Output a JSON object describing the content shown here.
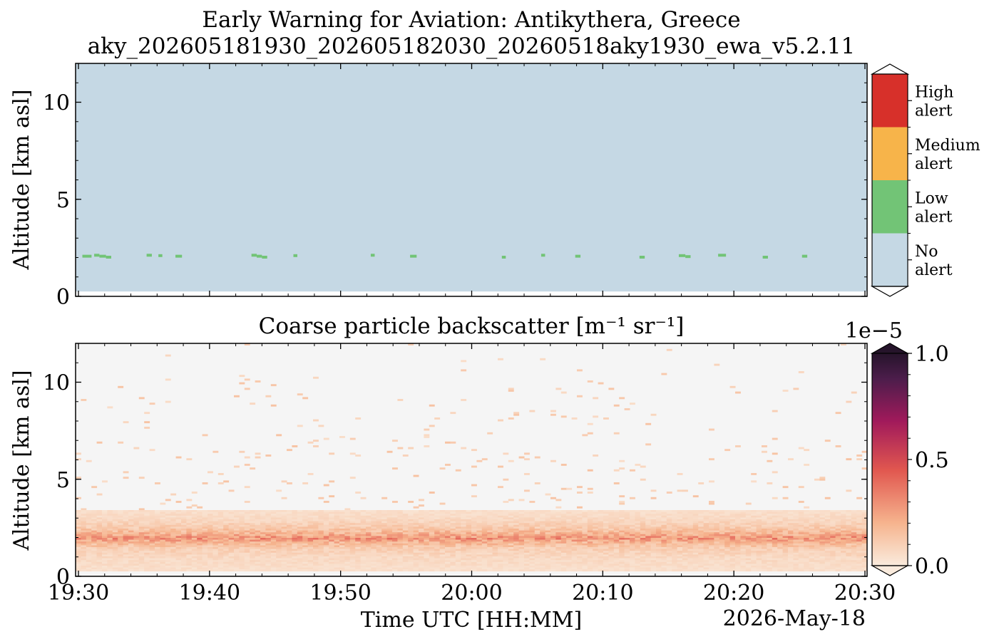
{
  "chart_data": [
    {
      "type": "heatmap",
      "panel": "top",
      "title_line1": "Early Warning for Aviation: Antikythera, Greece",
      "title_line2": "aky_202605181930_202605182030_20260518aky1930_ewa_v5.2.11",
      "ylabel": "Altitude [km asl]",
      "ylim": [
        0,
        12
      ],
      "yticks": [
        {
          "value": 0,
          "label": "0"
        },
        {
          "value": 5,
          "label": "5"
        },
        {
          "value": 10,
          "label": "10"
        }
      ],
      "xlim": [
        "19:30",
        "20:30"
      ],
      "background_level": "No alert",
      "colorbar": {
        "levels": [
          {
            "label_line1": "High",
            "label_line2": "alert",
            "color": "#d7302a"
          },
          {
            "label_line1": "Medium",
            "label_line2": "alert",
            "color": "#f7b44a"
          },
          {
            "label_line1": "Low",
            "label_line2": "alert",
            "color": "#72c476"
          },
          {
            "label_line1": "No",
            "label_line2": "alert",
            "color": "#c5d8e4"
          }
        ]
      },
      "low_alert_cells": [
        {
          "start": "19:30.3",
          "end": "19:31.0",
          "alt": 2.05
        },
        {
          "start": "19:31.2",
          "end": "19:31.6",
          "alt": 2.1
        },
        {
          "start": "19:31.6",
          "end": "19:32.1",
          "alt": 2.05
        },
        {
          "start": "19:32.1",
          "end": "19:32.5",
          "alt": 2.0
        },
        {
          "start": "19:35.2",
          "end": "19:35.6",
          "alt": 2.1
        },
        {
          "start": "19:36.1",
          "end": "19:36.4",
          "alt": 2.08
        },
        {
          "start": "19:37.4",
          "end": "19:37.9",
          "alt": 2.05
        },
        {
          "start": "19:43.2",
          "end": "19:43.6",
          "alt": 2.1
        },
        {
          "start": "19:43.6",
          "end": "19:44.0",
          "alt": 2.05
        },
        {
          "start": "19:44.0",
          "end": "19:44.4",
          "alt": 2.0
        },
        {
          "start": "19:46.4",
          "end": "19:46.7",
          "alt": 2.08
        },
        {
          "start": "19:52.3",
          "end": "19:52.6",
          "alt": 2.1
        },
        {
          "start": "19:55.3",
          "end": "19:55.8",
          "alt": 2.05
        },
        {
          "start": "20:02.3",
          "end": "20:02.6",
          "alt": 2.0
        },
        {
          "start": "20:05.3",
          "end": "20:05.6",
          "alt": 2.1
        },
        {
          "start": "20:07.9",
          "end": "20:08.3",
          "alt": 2.05
        },
        {
          "start": "20:12.8",
          "end": "20:13.2",
          "alt": 2.0
        },
        {
          "start": "20:15.8",
          "end": "20:16.3",
          "alt": 2.08
        },
        {
          "start": "20:16.3",
          "end": "20:16.7",
          "alt": 2.03
        },
        {
          "start": "20:18.8",
          "end": "20:19.4",
          "alt": 2.1
        },
        {
          "start": "20:22.2",
          "end": "20:22.6",
          "alt": 2.0
        },
        {
          "start": "20:25.2",
          "end": "20:25.6",
          "alt": 2.05
        }
      ]
    },
    {
      "type": "heatmap",
      "panel": "bottom",
      "title": "Coarse particle backscatter [m⁻¹ sr⁻¹]",
      "ylabel": "Altitude [km asl]",
      "xlabel": "Time UTC [HH:MM]",
      "date_label": "2026-May-18",
      "ylim": [
        0,
        12
      ],
      "yticks": [
        {
          "value": 0,
          "label": "0"
        },
        {
          "value": 5,
          "label": "5"
        },
        {
          "value": 10,
          "label": "10"
        }
      ],
      "xticks": [
        {
          "value": 0,
          "label": "19:30"
        },
        {
          "value": 10,
          "label": "19:40"
        },
        {
          "value": 20,
          "label": "19:50"
        },
        {
          "value": 30,
          "label": "20:00"
        },
        {
          "value": 40,
          "label": "20:10"
        },
        {
          "value": 50,
          "label": "20:20"
        },
        {
          "value": 60,
          "label": "20:30"
        }
      ],
      "colorbar": {
        "multiplier": "1e−5",
        "min": 0.0,
        "max": 1.0,
        "ticks": [
          {
            "value": 1.0,
            "label": "1.0"
          },
          {
            "value": 0.5,
            "label": "0.5"
          },
          {
            "value": 0.0,
            "label": "0.0"
          }
        ],
        "colormap": [
          "#faebdd",
          "#f6b48e",
          "#e1574f",
          "#a11a5b",
          "#4c1d4b",
          "#26142b"
        ]
      },
      "missing_color": "#f5f5f5",
      "layer_profile": {
        "altitude_km": [
          0.3,
          0.6,
          1.0,
          1.5,
          1.8,
          2.0,
          2.2,
          2.5,
          3.0,
          3.5,
          4.5,
          6.0,
          8.0,
          12.0
        ],
        "typical_backscatter_1e-5": [
          0.04,
          0.05,
          0.06,
          0.1,
          0.18,
          0.28,
          0.2,
          0.12,
          0.06,
          0.04,
          0.02,
          0.01,
          0.005,
          0.002
        ]
      }
    }
  ]
}
